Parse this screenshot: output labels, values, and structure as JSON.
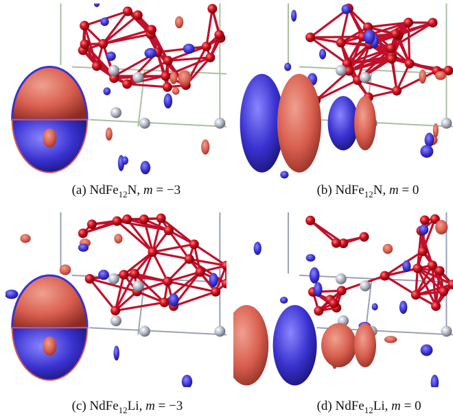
{
  "panels": [
    {
      "label": "(a)",
      "formula": "NdFe",
      "subscript": "12",
      "element": "N",
      "math_var": "m",
      "math_rest": " = −3"
    },
    {
      "label": "(b)",
      "formula": "NdFe",
      "subscript": "12",
      "element": "N",
      "math_var": "m",
      "math_rest": " = 0"
    },
    {
      "label": "(c)",
      "formula": "NdFe",
      "subscript": "12",
      "element": "Li",
      "math_var": "m",
      "math_rest": " = −3"
    },
    {
      "label": "(d)",
      "formula": "NdFe",
      "subscript": "12",
      "element": "Li",
      "math_var": "m",
      "math_rest": " = 0"
    }
  ]
}
